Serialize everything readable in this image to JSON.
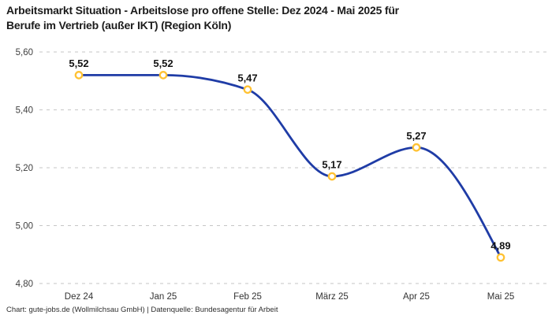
{
  "page": {
    "title": {
      "line1": "Arbeitsmarkt Situation - Arbeitslose pro offene Stelle: Dez 2024 - Mai 2025 für",
      "line2": "Berufe im Vertrieb (außer IKT) (Region Köln)"
    },
    "footer": "Chart: gute-jobs.de (Wollmilchsau GmbH) | Datenquelle: Bundesagentur für Arbeit"
  },
  "chart_data": {
    "type": "line",
    "title": "Arbeitsmarkt Situation - Arbeitslose pro offene Stelle: Dez 2024 - Mai 2025 für Berufe im Vertrieb (außer IKT) (Region Köln)",
    "categories": [
      "Dez 24",
      "Jan 25",
      "Feb 25",
      "März 25",
      "Apr 25",
      "Mai 25"
    ],
    "values": [
      5.52,
      5.52,
      5.47,
      5.17,
      5.27,
      4.89
    ],
    "value_labels": [
      "5,52",
      "5,52",
      "5,47",
      "5,17",
      "5,27",
      "4,89"
    ],
    "xlabel": "",
    "ylabel": "",
    "ylim": [
      4.8,
      5.6
    ],
    "yticks": [
      5.6,
      5.4,
      5.2,
      5.0,
      4.8
    ],
    "ytick_labels": [
      "5,60",
      "5,40",
      "5,20",
      "5,00",
      "4,80"
    ],
    "grid": "horizontal-dashed",
    "legend": "none",
    "curve": "monotone",
    "line_color": "#1f3ca6",
    "marker_ring_color": "#ffc233",
    "marker_fill_color": "#ffffff",
    "grid_color": "#c6c6c6"
  }
}
